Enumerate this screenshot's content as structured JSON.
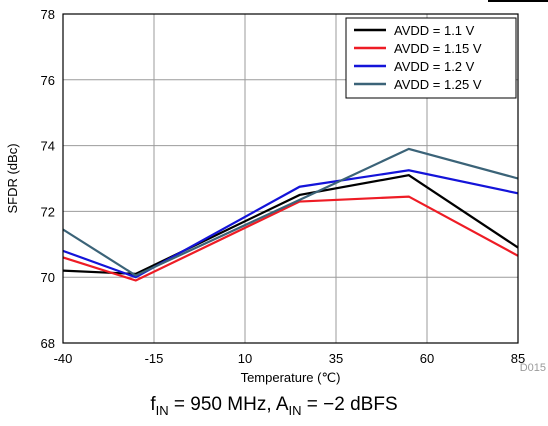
{
  "chart_data": {
    "type": "line",
    "xlabel": "Temperature (℃)",
    "ylabel": "SFDR (dBc)",
    "xlim": [
      -40,
      85
    ],
    "ylim": [
      68,
      78
    ],
    "x_ticks": [
      "-40",
      "-15",
      "10",
      "35",
      "60",
      "85"
    ],
    "y_ticks": [
      "68",
      "70",
      "72",
      "74",
      "76",
      "78"
    ],
    "grid": true,
    "legend_position": "top-right",
    "x": [
      -40,
      -20,
      25,
      55,
      85
    ],
    "series": [
      {
        "name": "AVDD = 1.1 V",
        "color": "#000000",
        "values": [
          70.2,
          70.1,
          72.5,
          73.1,
          70.9
        ]
      },
      {
        "name": "AVDD = 1.15 V",
        "color": "#ee1c25",
        "values": [
          70.6,
          69.9,
          72.3,
          72.45,
          70.65
        ]
      },
      {
        "name": "AVDD = 1.2 V",
        "color": "#1414d9",
        "values": [
          70.8,
          70.0,
          72.75,
          73.25,
          72.55
        ]
      },
      {
        "name": "AVDD = 1.25 V",
        "color": "#3b6378",
        "values": [
          71.45,
          70.05,
          72.35,
          73.9,
          73.0
        ]
      }
    ]
  },
  "figure_id": "D015",
  "caption": {
    "f_main": "f",
    "f_sub": "IN",
    "f_value": " = 950 MHz, A",
    "a_sub": "IN",
    "a_value": " = −2 dBFS"
  }
}
